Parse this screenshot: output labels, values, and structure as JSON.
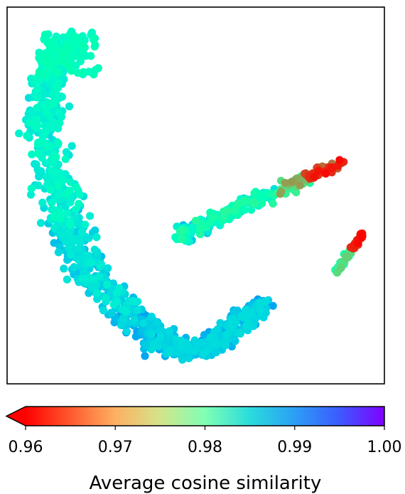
{
  "chart_data": {
    "type": "scatter",
    "title": "",
    "xlabel": "",
    "ylabel": "",
    "axes_ticks_shown": false,
    "colormap": "rainbow (reversed)",
    "colorbar": {
      "label": "Average cosine similarity",
      "range": [
        0.96,
        1.0
      ],
      "extend": "min",
      "ticks": [
        0.96,
        0.97,
        0.98,
        0.99,
        1.0
      ],
      "tick_labels": [
        "0.96",
        "0.97",
        "0.98",
        "0.99",
        "1.00"
      ],
      "placement": "bottom"
    },
    "point_count_estimate": 1500,
    "regions": [
      {
        "name": "upper-left arm",
        "value_range": [
          0.98,
          0.987
        ]
      },
      {
        "name": "bottom curve",
        "value_range": [
          0.986,
          0.992
        ]
      },
      {
        "name": "right arm",
        "value_range": [
          0.975,
          0.99
        ]
      },
      {
        "name": "right arm tip",
        "value_range": [
          0.96,
          0.966
        ]
      },
      {
        "name": "lower-right outlier cluster",
        "value_range": [
          0.96,
          0.978
        ]
      }
    ]
  },
  "colors": {
    "frame": "#000000",
    "background": "#ffffff"
  }
}
